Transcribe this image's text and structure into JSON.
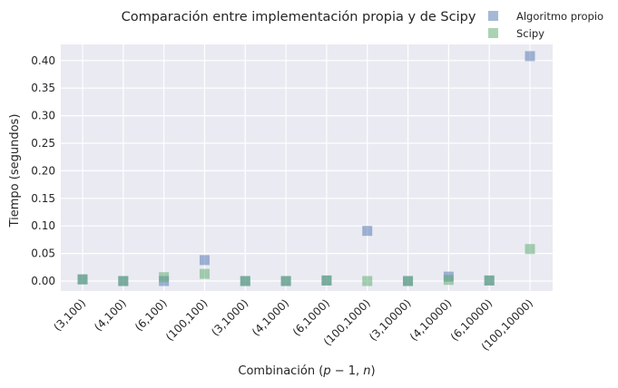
{
  "chart_data": {
    "type": "scatter",
    "title": "Comparación entre implementación propia y de Scipy",
    "xlabel": "Combinación (p − 1, n)",
    "ylabel": "Tiempo (segundos)",
    "categories": [
      "(3,100)",
      "(4,100)",
      "(6,100)",
      "(100,100)",
      "(3,1000)",
      "(4,1000)",
      "(6,1000)",
      "(100,1000)",
      "(3,10000)",
      "(4,10000)",
      "(6,10000)",
      "(100,10000)"
    ],
    "ylim": [
      -0.018,
      0.43
    ],
    "yticks": [
      "0.00",
      "0.05",
      "0.10",
      "0.15",
      "0.20",
      "0.25",
      "0.30",
      "0.35",
      "0.40"
    ],
    "grid": true,
    "legend_position": "top-right",
    "series": [
      {
        "name": "Algoritmo propio",
        "color": "#4c72b0",
        "values": [
          0.003,
          0.0,
          0.0,
          0.038,
          0.0,
          0.0,
          0.001,
          0.091,
          0.0,
          0.008,
          0.001,
          0.408
        ]
      },
      {
        "name": "Scipy",
        "color": "#55a868",
        "values": [
          0.003,
          0.0,
          0.007,
          0.013,
          0.0,
          0.0,
          0.001,
          0.0,
          0.0,
          0.002,
          0.001,
          0.058
        ]
      }
    ]
  }
}
